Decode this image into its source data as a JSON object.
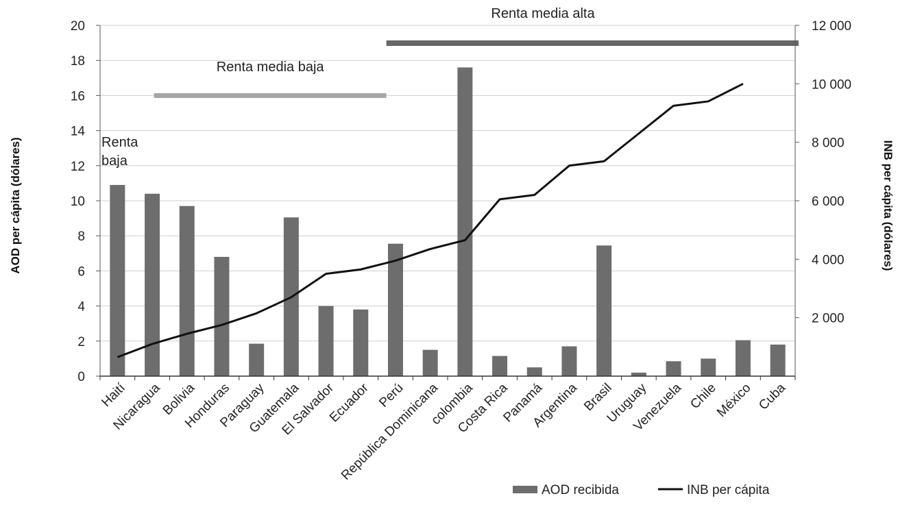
{
  "chart_data": {
    "type": "bar",
    "categories": [
      "Haití",
      "Nicaragua",
      "Bolivia",
      "Honduras",
      "Paraguay",
      "Guatemala",
      "El Salvador",
      "Ecuador",
      "Perú",
      "República Dominicana",
      "colombia",
      "Costa Rica",
      "Panamá",
      "Argentina",
      "Brasil",
      "Uruguay",
      "Venezuela",
      "Chile",
      "México",
      "Cuba"
    ],
    "series": [
      {
        "name": "AOD recibida",
        "type": "bar",
        "axis": "left",
        "color": "#6d6d6d",
        "values": [
          10.9,
          10.4,
          9.7,
          6.8,
          1.85,
          9.05,
          4.0,
          3.8,
          7.55,
          1.5,
          17.6,
          1.15,
          0.5,
          1.7,
          7.45,
          0.2,
          0.85,
          1.0,
          2.05,
          1.8
        ]
      },
      {
        "name": "INB per cápita",
        "type": "line",
        "axis": "right",
        "color": "#111111",
        "values": [
          650,
          1100,
          1450,
          1750,
          2150,
          2700,
          3500,
          3650,
          3950,
          4350,
          4650,
          6050,
          6200,
          7200,
          7350,
          8300,
          9250,
          9400,
          10000,
          null
        ]
      }
    ],
    "ylabel": "AOD per cápita (dólares)",
    "y2label": "INB per cápita (dólares)",
    "ylim": [
      0,
      20
    ],
    "y2lim": [
      0,
      12000
    ],
    "yticks": [
      "0",
      "2",
      "4",
      "6",
      "8",
      "10",
      "12",
      "14",
      "16",
      "18",
      "20"
    ],
    "y2ticks": [
      "2 000",
      "4 000",
      "6 000",
      "8 000",
      "10 000",
      "12 000"
    ],
    "grid": true,
    "legend_position": "bottom-right",
    "income_bands": [
      {
        "label": "Renta baja",
        "line1": "Renta",
        "line2": "baja",
        "from_category": 0,
        "to_category": 0,
        "color": null
      },
      {
        "label": "Renta media baja",
        "from_category": 1,
        "to_category": 8,
        "color": "#a6a6a6"
      },
      {
        "label": "Renta media alta",
        "from_category": 8,
        "to_category": 19,
        "color": "#666666"
      }
    ]
  }
}
